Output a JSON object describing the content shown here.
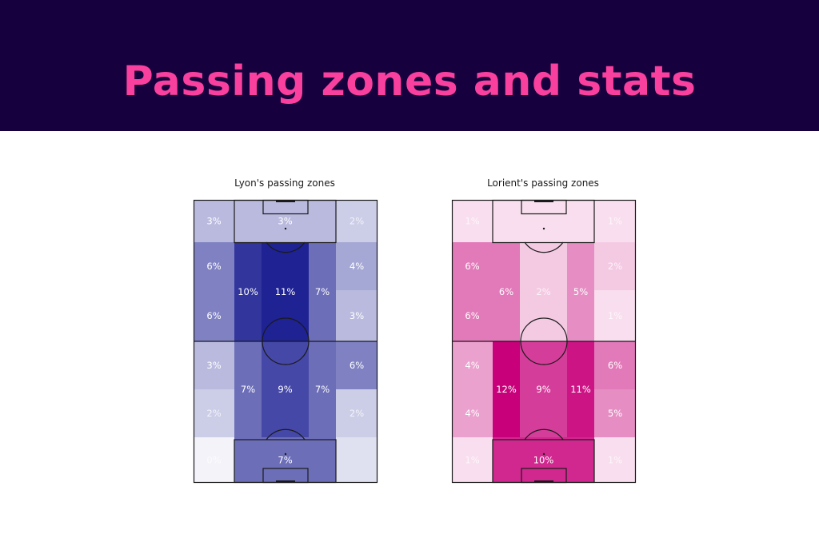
{
  "header": {
    "title": "Passing zones and stats"
  },
  "colors": {
    "header_bg": "#16003d",
    "title": "#f9409e",
    "lyon_base": "#0b0f8a",
    "lorient_base": "#c8007a",
    "lines": "#1a1a1a"
  },
  "chart_data": [
    {
      "type": "heatmap",
      "title": "Lyon's passing zones",
      "zone_grid": "pitch, attacking upward; rows listed top to bottom, columns left to right",
      "zones": [
        {
          "row": "top-third-1",
          "col": "wide-left",
          "value": 3,
          "label": "3%"
        },
        {
          "row": "top-third-1",
          "col": "centre",
          "value": 3,
          "label": "3%"
        },
        {
          "row": "top-third-1",
          "col": "wide-right",
          "value": 2,
          "label": "2%"
        },
        {
          "row": "top-third-2",
          "col": "wide-left",
          "value": 6,
          "label": "6%"
        },
        {
          "row": "top-third-2",
          "col": "wide-right",
          "value": 4,
          "label": "4%"
        },
        {
          "row": "top-third-3",
          "col": "wide-left",
          "value": 6,
          "label": "6%"
        },
        {
          "row": "top-third-3",
          "col": "wide-right",
          "value": 3,
          "label": "3%"
        },
        {
          "row": "top-half",
          "col": "half-space-left",
          "value": 10,
          "label": "10%"
        },
        {
          "row": "top-half",
          "col": "centre",
          "value": 11,
          "label": "11%"
        },
        {
          "row": "top-half",
          "col": "half-space-right",
          "value": 7,
          "label": "7%"
        },
        {
          "row": "bottom-half",
          "col": "half-space-left",
          "value": 7,
          "label": "7%"
        },
        {
          "row": "bottom-half",
          "col": "centre",
          "value": 9,
          "label": "9%"
        },
        {
          "row": "bottom-half",
          "col": "half-space-right",
          "value": 7,
          "label": "7%"
        },
        {
          "row": "bottom-third-1",
          "col": "wide-left",
          "value": 3,
          "label": "3%"
        },
        {
          "row": "bottom-third-1",
          "col": "wide-right",
          "value": 6,
          "label": "6%"
        },
        {
          "row": "bottom-third-2",
          "col": "wide-left",
          "value": 2,
          "label": "2%"
        },
        {
          "row": "bottom-third-2",
          "col": "wide-right",
          "value": 2,
          "label": "2%"
        },
        {
          "row": "bottom-third-3",
          "col": "wide-left",
          "value": 0,
          "label": "0%"
        },
        {
          "row": "bottom-third-3",
          "col": "centre",
          "value": 7,
          "label": "7%"
        },
        {
          "row": "bottom-third-3",
          "col": "wide-right",
          "value": 1,
          "label": ""
        }
      ]
    },
    {
      "type": "heatmap",
      "title": "Lorient's passing zones",
      "zone_grid": "pitch, attacking upward; rows listed top to bottom, columns left to right",
      "zones": [
        {
          "row": "top-third-1",
          "col": "wide-left",
          "value": 1,
          "label": "1%"
        },
        {
          "row": "top-third-1",
          "col": "centre",
          "value": 1,
          "label": ""
        },
        {
          "row": "top-third-1",
          "col": "wide-right",
          "value": 1,
          "label": "1%"
        },
        {
          "row": "top-third-2",
          "col": "wide-left",
          "value": 6,
          "label": "6%"
        },
        {
          "row": "top-third-2",
          "col": "wide-right",
          "value": 2,
          "label": "2%"
        },
        {
          "row": "top-third-3",
          "col": "wide-left",
          "value": 6,
          "label": "6%"
        },
        {
          "row": "top-third-3",
          "col": "wide-right",
          "value": 1,
          "label": "1%"
        },
        {
          "row": "top-half",
          "col": "half-space-left",
          "value": 6,
          "label": "6%"
        },
        {
          "row": "top-half",
          "col": "centre",
          "value": 2,
          "label": "2%"
        },
        {
          "row": "top-half",
          "col": "half-space-right",
          "value": 5,
          "label": "5%"
        },
        {
          "row": "bottom-half",
          "col": "half-space-left",
          "value": 12,
          "label": "12%"
        },
        {
          "row": "bottom-half",
          "col": "centre",
          "value": 9,
          "label": "9%"
        },
        {
          "row": "bottom-half",
          "col": "half-space-right",
          "value": 11,
          "label": "11%"
        },
        {
          "row": "bottom-third-1",
          "col": "wide-left",
          "value": 4,
          "label": "4%"
        },
        {
          "row": "bottom-third-1",
          "col": "wide-right",
          "value": 6,
          "label": "6%"
        },
        {
          "row": "bottom-third-2",
          "col": "wide-left",
          "value": 4,
          "label": "4%"
        },
        {
          "row": "bottom-third-2",
          "col": "wide-right",
          "value": 5,
          "label": "5%"
        },
        {
          "row": "bottom-third-3",
          "col": "wide-left",
          "value": 1,
          "label": "1%"
        },
        {
          "row": "bottom-third-3",
          "col": "centre",
          "value": 10,
          "label": "10%"
        },
        {
          "row": "bottom-third-3",
          "col": "wide-right",
          "value": 1,
          "label": "1%"
        }
      ]
    }
  ]
}
